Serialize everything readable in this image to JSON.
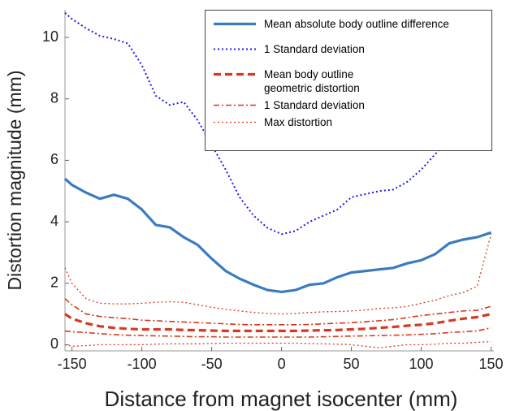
{
  "chart_data": {
    "type": "line",
    "xlabel": "Distance from magnet isocenter (mm)",
    "ylabel": "Distortion magnitude (mm)",
    "x": [
      -155,
      -150,
      -140,
      -130,
      -120,
      -110,
      -100,
      -90,
      -80,
      -70,
      -60,
      -50,
      -40,
      -30,
      -20,
      -10,
      0,
      10,
      20,
      30,
      40,
      50,
      60,
      70,
      80,
      90,
      100,
      110,
      120,
      130,
      140,
      150
    ],
    "xlim": [
      -155,
      152
    ],
    "xticks": [
      -150,
      -100,
      -50,
      0,
      50,
      100,
      150
    ],
    "ylim": [
      -0.2,
      10.9
    ],
    "yticks": [
      0,
      2,
      4,
      6,
      8,
      10
    ],
    "legend": "upper right",
    "series": [
      {
        "name": "Mean absolute body outline difference",
        "color": "#3a7bc0",
        "style": "solid",
        "width": 3.2,
        "values": [
          5.4,
          5.2,
          4.95,
          4.75,
          4.88,
          4.75,
          4.4,
          3.9,
          3.82,
          3.5,
          3.25,
          2.8,
          2.4,
          2.15,
          1.95,
          1.78,
          1.72,
          1.78,
          1.95,
          2.0,
          2.2,
          2.35,
          2.4,
          2.45,
          2.5,
          2.65,
          2.75,
          2.95,
          3.3,
          3.42,
          3.5,
          3.65
        ]
      },
      {
        "name": "1 Standard deviation",
        "color": "#1a1aee",
        "style": "dotted",
        "width": 2,
        "values": [
          10.8,
          10.6,
          10.3,
          10.05,
          9.95,
          9.8,
          9.1,
          8.1,
          7.8,
          7.9,
          7.3,
          6.5,
          5.7,
          4.8,
          4.2,
          3.8,
          3.6,
          3.7,
          4.0,
          4.2,
          4.4,
          4.8,
          4.9,
          5.0,
          5.05,
          5.3,
          5.7,
          6.2,
          6.7,
          6.9,
          7.1,
          7.3
        ]
      },
      {
        "name": "Mean body outline\ngeometric distortion",
        "color": "#d9381e",
        "style": "dashed",
        "width": 3.2,
        "values": [
          1.0,
          0.85,
          0.7,
          0.6,
          0.55,
          0.52,
          0.5,
          0.5,
          0.5,
          0.48,
          0.47,
          0.46,
          0.45,
          0.45,
          0.45,
          0.45,
          0.45,
          0.45,
          0.46,
          0.47,
          0.48,
          0.5,
          0.52,
          0.55,
          0.58,
          0.62,
          0.65,
          0.7,
          0.78,
          0.85,
          0.9,
          1.0
        ]
      },
      {
        "name": "1 Standard deviation",
        "color": "#d9381e",
        "style": "dashdot",
        "width": 1.6,
        "values": [
          1.5,
          1.3,
          1.0,
          0.92,
          0.88,
          0.85,
          0.8,
          0.78,
          0.76,
          0.74,
          0.72,
          0.7,
          0.68,
          0.66,
          0.65,
          0.65,
          0.65,
          0.65,
          0.66,
          0.68,
          0.7,
          0.72,
          0.75,
          0.78,
          0.82,
          0.88,
          0.95,
          1.0,
          1.05,
          1.1,
          1.12,
          1.25
        ]
      },
      {
        "name": "1 Standard deviation",
        "color": "#d9381e",
        "style": "dashdot",
        "width": 1.6,
        "values": [
          0.45,
          0.42,
          0.4,
          0.36,
          0.33,
          0.31,
          0.3,
          0.29,
          0.28,
          0.27,
          0.26,
          0.26,
          0.25,
          0.25,
          0.25,
          0.25,
          0.25,
          0.25,
          0.25,
          0.26,
          0.27,
          0.28,
          0.29,
          0.3,
          0.31,
          0.32,
          0.34,
          0.36,
          0.4,
          0.42,
          0.45,
          0.55
        ]
      },
      {
        "name": "Max distortion",
        "color": "#d9381e",
        "style": "dotted",
        "width": 1.3,
        "values": [
          2.5,
          2.0,
          1.5,
          1.35,
          1.33,
          1.33,
          1.35,
          1.38,
          1.4,
          1.38,
          1.3,
          1.22,
          1.15,
          1.1,
          1.05,
          1.02,
          1.0,
          1.02,
          1.05,
          1.07,
          1.08,
          1.1,
          1.13,
          1.18,
          1.2,
          1.25,
          1.35,
          1.45,
          1.6,
          1.7,
          1.9,
          3.6
        ]
      },
      {
        "name": "Max distortion",
        "color": "#d9381e",
        "style": "dotted",
        "width": 1.3,
        "values": [
          0.0,
          -0.05,
          -0.03,
          0.0,
          0.0,
          0.0,
          0.0,
          0.02,
          0.03,
          0.03,
          0.03,
          0.04,
          0.05,
          0.05,
          0.05,
          0.05,
          0.05,
          0.05,
          0.04,
          0.03,
          0.02,
          0.0,
          -0.05,
          -0.1,
          -0.05,
          0.0,
          0.0,
          0.02,
          0.05,
          0.05,
          0.08,
          0.1
        ]
      }
    ]
  }
}
